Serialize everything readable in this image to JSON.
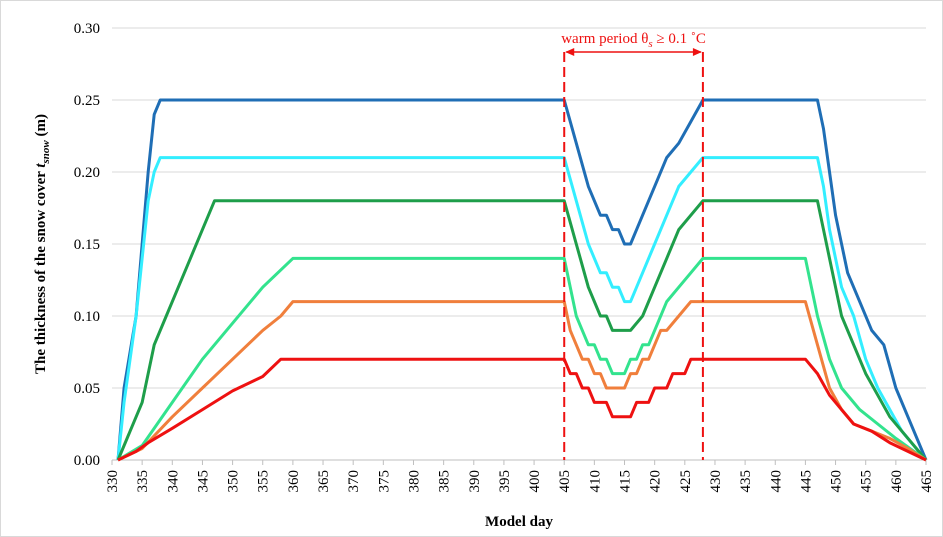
{
  "chart_data": {
    "type": "line",
    "xlabel": "Model day",
    "ylabel": [
      "The thickness of the snow cover ",
      "t",
      "snow",
      " (m)"
    ],
    "annotation": {
      "text": "warm period θ",
      "sub": "s",
      "tail": " ≥ 0.1 ˚C",
      "period": [
        405,
        428
      ],
      "color": "#ee1111"
    },
    "xlim": [
      330,
      465
    ],
    "xticks": [
      330,
      335,
      340,
      345,
      350,
      355,
      360,
      365,
      370,
      375,
      380,
      385,
      390,
      395,
      400,
      405,
      410,
      415,
      420,
      425,
      430,
      435,
      440,
      445,
      450,
      455,
      460,
      465
    ],
    "ylim": [
      0,
      0.3
    ],
    "yticks": [
      {
        "value": 0,
        "label": "0.00"
      },
      0.05,
      {
        "value": 0.1,
        "label": "0.10"
      },
      0.15,
      {
        "value": 0.2,
        "label": "0.20"
      },
      0.25,
      {
        "value": 0.3,
        "label": "0.30"
      }
    ],
    "grid": true,
    "series": [
      {
        "color": "#1f6eb5",
        "x": [
          331,
          332,
          333,
          334,
          335,
          336,
          337,
          338,
          405,
          407,
          409,
          411,
          412,
          413,
          414,
          415,
          416,
          418,
          420,
          422,
          424,
          426,
          428,
          447,
          448,
          449,
          450,
          451,
          452,
          454,
          456,
          458,
          460,
          462,
          465
        ],
        "values": [
          0,
          0.05,
          0.075,
          0.1,
          0.15,
          0.2,
          0.24,
          0.25,
          0.25,
          0.22,
          0.19,
          0.17,
          0.17,
          0.16,
          0.16,
          0.15,
          0.15,
          0.17,
          0.19,
          0.21,
          0.22,
          0.235,
          0.25,
          0.25,
          0.23,
          0.2,
          0.17,
          0.15,
          0.13,
          0.11,
          0.09,
          0.08,
          0.05,
          0.03,
          0
        ]
      },
      {
        "color": "#33eeff",
        "x": [
          331,
          332,
          333,
          334,
          335,
          336,
          337,
          338,
          405,
          407,
          409,
          410,
          411,
          412,
          413,
          414,
          415,
          416,
          417,
          418,
          420,
          422,
          424,
          426,
          428,
          447,
          448,
          449,
          450,
          451,
          453,
          455,
          457,
          459,
          461,
          465
        ],
        "values": [
          0,
          0.04,
          0.07,
          0.1,
          0.14,
          0.18,
          0.2,
          0.21,
          0.21,
          0.18,
          0.15,
          0.14,
          0.13,
          0.13,
          0.12,
          0.12,
          0.11,
          0.11,
          0.12,
          0.13,
          0.15,
          0.17,
          0.19,
          0.2,
          0.21,
          0.21,
          0.19,
          0.16,
          0.14,
          0.12,
          0.1,
          0.07,
          0.05,
          0.035,
          0.02,
          0
        ]
      },
      {
        "color": "#1e9e4a",
        "x": [
          331,
          333,
          335,
          337,
          339,
          341,
          343,
          345,
          347,
          405,
          407,
          409,
          411,
          412,
          413,
          414,
          415,
          416,
          418,
          420,
          422,
          424,
          428,
          447,
          449,
          451,
          453,
          455,
          457,
          459,
          461,
          465
        ],
        "values": [
          0,
          0.02,
          0.04,
          0.08,
          0.1,
          0.12,
          0.14,
          0.16,
          0.18,
          0.18,
          0.15,
          0.12,
          0.1,
          0.1,
          0.09,
          0.09,
          0.09,
          0.09,
          0.1,
          0.12,
          0.14,
          0.16,
          0.18,
          0.18,
          0.14,
          0.1,
          0.08,
          0.06,
          0.045,
          0.03,
          0.02,
          0
        ]
      },
      {
        "color": "#33e38e",
        "x": [
          331,
          335,
          340,
          345,
          350,
          355,
          360,
          405,
          406,
          407,
          408,
          409,
          410,
          411,
          412,
          413,
          414,
          415,
          416,
          417,
          418,
          419,
          420,
          422,
          424,
          426,
          428,
          445,
          447,
          449,
          451,
          454,
          457,
          460,
          465
        ],
        "values": [
          0,
          0.01,
          0.04,
          0.07,
          0.095,
          0.12,
          0.14,
          0.14,
          0.12,
          0.1,
          0.09,
          0.08,
          0.08,
          0.07,
          0.07,
          0.06,
          0.06,
          0.06,
          0.07,
          0.07,
          0.08,
          0.08,
          0.09,
          0.11,
          0.12,
          0.13,
          0.14,
          0.14,
          0.1,
          0.07,
          0.05,
          0.035,
          0.025,
          0.015,
          0
        ]
      },
      {
        "color": "#f07f3c",
        "x": [
          331,
          335,
          340,
          345,
          350,
          355,
          358,
          360,
          405,
          406,
          407,
          408,
          409,
          410,
          411,
          412,
          413,
          414,
          415,
          416,
          417,
          418,
          419,
          420,
          421,
          422,
          424,
          426,
          428,
          445,
          447,
          449,
          451,
          453,
          456,
          459,
          462,
          465
        ],
        "values": [
          0,
          0.008,
          0.03,
          0.05,
          0.07,
          0.09,
          0.1,
          0.11,
          0.11,
          0.09,
          0.08,
          0.07,
          0.07,
          0.06,
          0.06,
          0.05,
          0.05,
          0.05,
          0.05,
          0.06,
          0.06,
          0.07,
          0.07,
          0.08,
          0.09,
          0.09,
          0.1,
          0.11,
          0.11,
          0.11,
          0.08,
          0.05,
          0.035,
          0.025,
          0.02,
          0.015,
          0.008,
          0
        ]
      },
      {
        "color": "#ee1111",
        "x": [
          331,
          334,
          336,
          340,
          345,
          350,
          355,
          358,
          405,
          406,
          407,
          408,
          409,
          410,
          411,
          412,
          413,
          414,
          415,
          416,
          417,
          418,
          419,
          420,
          421,
          422,
          423,
          424,
          425,
          426,
          428,
          445,
          447,
          449,
          451,
          453,
          456,
          459,
          465
        ],
        "values": [
          0,
          0.006,
          0.012,
          0.022,
          0.035,
          0.048,
          0.058,
          0.07,
          0.07,
          0.06,
          0.06,
          0.05,
          0.05,
          0.04,
          0.04,
          0.04,
          0.03,
          0.03,
          0.03,
          0.03,
          0.04,
          0.04,
          0.04,
          0.05,
          0.05,
          0.05,
          0.06,
          0.06,
          0.06,
          0.07,
          0.07,
          0.07,
          0.06,
          0.045,
          0.035,
          0.025,
          0.02,
          0.012,
          0
        ]
      }
    ]
  }
}
